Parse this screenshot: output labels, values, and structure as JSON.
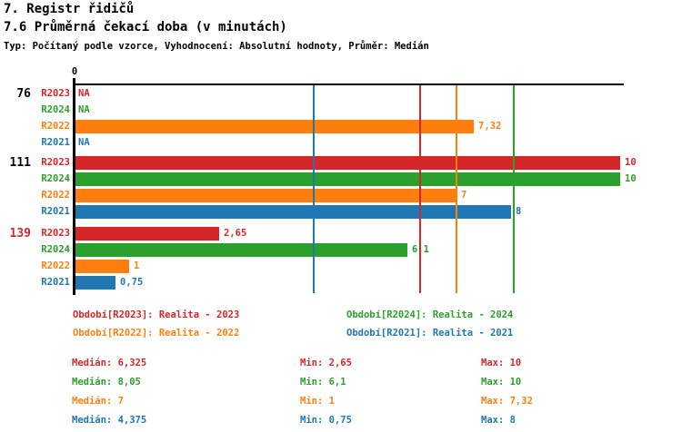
{
  "header": {
    "title": "7. Registr řidičů",
    "subtitle": "7.6 Průměrná čekací doba (v minutách)",
    "meta": "Typ: Počítaný podle vzorce, Vyhodnocení: Absolutní hodnoty, Průměr: Medián"
  },
  "colors": {
    "red": "#d62728",
    "green": "#2ca02c",
    "orange": "#ff7f0e",
    "blue": "#1f77b4",
    "axis": "#000000",
    "background": "#ffffff"
  },
  "chart_data": {
    "type": "bar",
    "orientation": "horizontal",
    "title": "7.6 Průměrná čekací doba (v minutách)",
    "axis": {
      "origin_label": "0",
      "min": 0,
      "units": "minuty"
    },
    "series": [
      {
        "id": "R2023",
        "color": "#d62728"
      },
      {
        "id": "R2024",
        "color": "#2ca02c"
      },
      {
        "id": "R2022",
        "color": "#ff7f0e"
      },
      {
        "id": "R2021",
        "color": "#1f77b4"
      }
    ],
    "groups": [
      {
        "label": "76",
        "label_color": "#000000",
        "values": [
          {
            "series": "R2023",
            "value": null,
            "display": "NA"
          },
          {
            "series": "R2024",
            "value": null,
            "display": "NA"
          },
          {
            "series": "R2022",
            "value": 7.32,
            "display": "7,32"
          },
          {
            "series": "R2021",
            "value": null,
            "display": "NA"
          }
        ]
      },
      {
        "label": "111",
        "label_color": "#000000",
        "values": [
          {
            "series": "R2023",
            "value": 10,
            "display": "10"
          },
          {
            "series": "R2024",
            "value": 10,
            "display": "10"
          },
          {
            "series": "R2022",
            "value": 7,
            "display": "7"
          },
          {
            "series": "R2021",
            "value": 8,
            "display": "8"
          }
        ]
      },
      {
        "label": "139",
        "label_color": "#d62728",
        "values": [
          {
            "series": "R2023",
            "value": 2.65,
            "display": "2,65"
          },
          {
            "series": "R2024",
            "value": 6.1,
            "display": "6,1"
          },
          {
            "series": "R2022",
            "value": 1,
            "display": "1"
          },
          {
            "series": "R2021",
            "value": 0.75,
            "display": "0,75"
          }
        ]
      }
    ],
    "medians": [
      {
        "series": "R2023",
        "value": 6.325
      },
      {
        "series": "R2024",
        "value": 8.05
      },
      {
        "series": "R2022",
        "value": 7
      },
      {
        "series": "R2021",
        "value": 4.375
      }
    ]
  },
  "legend": {
    "items": [
      {
        "id": "R2023",
        "text": "Období[R2023]: Realita - 2023",
        "color": "#d62728"
      },
      {
        "id": "R2024",
        "text": "Období[R2024]: Realita - 2024",
        "color": "#2ca02c"
      },
      {
        "id": "R2022",
        "text": "Období[R2022]: Realita - 2022",
        "color": "#ff7f0e"
      },
      {
        "id": "R2021",
        "text": "Období[R2021]: Realita - 2021",
        "color": "#1f77b4"
      }
    ]
  },
  "stats": {
    "rows": [
      {
        "series": "R2023",
        "color": "#d62728",
        "median_label": "Medián",
        "median": "6,325",
        "min_label": "Min",
        "min": "2,65",
        "max_label": "Max",
        "max": "10"
      },
      {
        "series": "R2024",
        "color": "#2ca02c",
        "median_label": "Medián",
        "median": "8,05",
        "min_label": "Min",
        "min": "6,1",
        "max_label": "Max",
        "max": "10"
      },
      {
        "series": "R2022",
        "color": "#ff7f0e",
        "median_label": "Medián",
        "median": "7",
        "min_label": "Min",
        "min": "1",
        "max_label": "Max",
        "max": "7,32"
      },
      {
        "series": "R2021",
        "color": "#1f77b4",
        "median_label": "Medián",
        "median": "4,375",
        "min_label": "Min",
        "min": "0,75",
        "max_label": "Max",
        "max": "8"
      }
    ]
  }
}
